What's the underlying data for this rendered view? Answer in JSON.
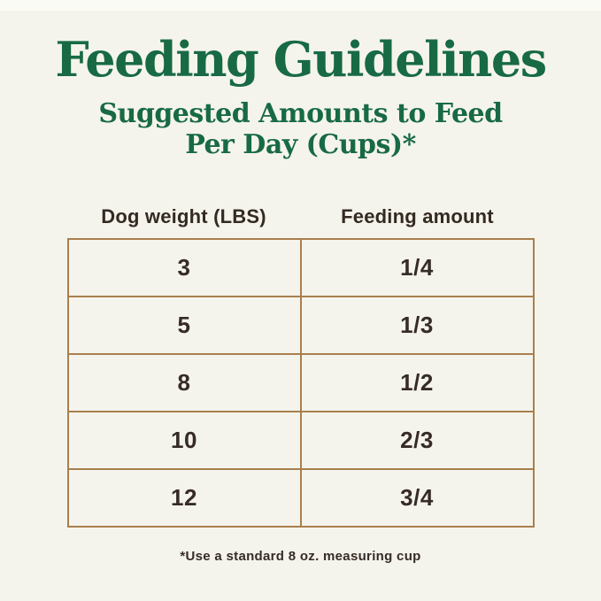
{
  "page": {
    "title": "Feeding Guidelines",
    "subtitle_line1": "Suggested Amounts to Feed",
    "subtitle_line2": "Per Day (Cups)*",
    "footnote": "*Use a standard 8 oz. measuring cup",
    "colors": {
      "background": "#f5f4ec",
      "heading_green": "#176a44",
      "body_text": "#362b26",
      "table_border": "#a97f4e"
    }
  },
  "table": {
    "headers": [
      "Dog weight (LBS)",
      "Feeding amount"
    ],
    "rows": [
      [
        "3",
        "1/4"
      ],
      [
        "5",
        "1/3"
      ],
      [
        "8",
        "1/2"
      ],
      [
        "10",
        "2/3"
      ],
      [
        "12",
        "3/4"
      ]
    ]
  },
  "chart_data": {
    "type": "table",
    "title": "Feeding Guidelines",
    "subtitle": "Suggested Amounts to Feed Per Day (Cups)*",
    "columns": [
      "Dog weight (LBS)",
      "Feeding amount"
    ],
    "rows": [
      {
        "dog_weight_lbs": 3,
        "feeding_amount_cups": "1/4"
      },
      {
        "dog_weight_lbs": 5,
        "feeding_amount_cups": "1/3"
      },
      {
        "dog_weight_lbs": 8,
        "feeding_amount_cups": "1/2"
      },
      {
        "dog_weight_lbs": 10,
        "feeding_amount_cups": "2/3"
      },
      {
        "dog_weight_lbs": 12,
        "feeding_amount_cups": "3/4"
      }
    ],
    "footnote": "*Use a standard 8 oz. measuring cup",
    "legend_position": "none",
    "grid": "table-borders"
  }
}
